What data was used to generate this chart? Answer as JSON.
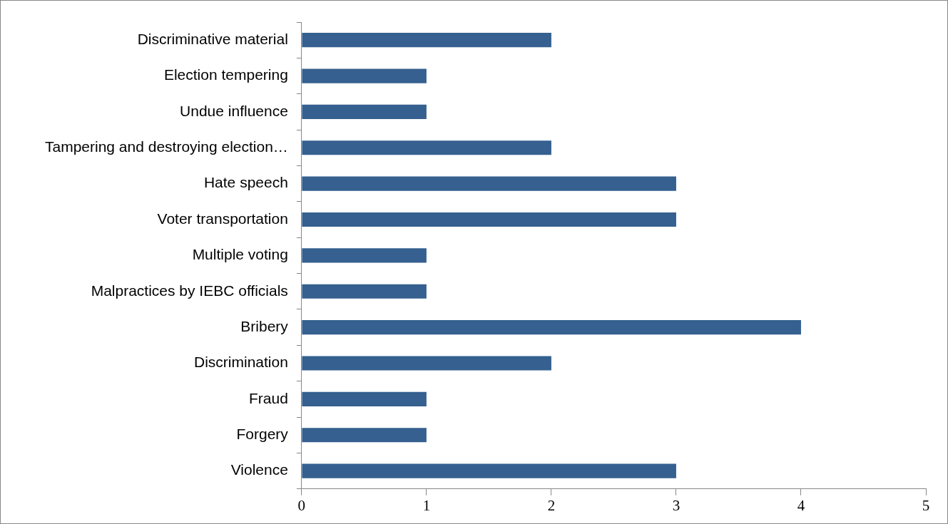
{
  "chart_data": {
    "type": "bar",
    "orientation": "horizontal",
    "categories": [
      "Discriminative material",
      "Election tempering",
      "Undue influence",
      "Tampering and destroying election…",
      "Hate speech",
      "Voter transportation",
      "Multiple voting",
      "Malpractices by IEBC officials",
      "Bribery",
      "Discrimination",
      "Fraud",
      "Forgery",
      "Violence"
    ],
    "values": [
      2,
      1,
      1,
      2,
      3,
      3,
      1,
      1,
      4,
      2,
      1,
      1,
      3
    ],
    "color": "#35608f",
    "xlim": [
      0,
      5
    ],
    "xticks": [
      0,
      1,
      2,
      3,
      4,
      5
    ],
    "grid": false,
    "legend": false
  }
}
